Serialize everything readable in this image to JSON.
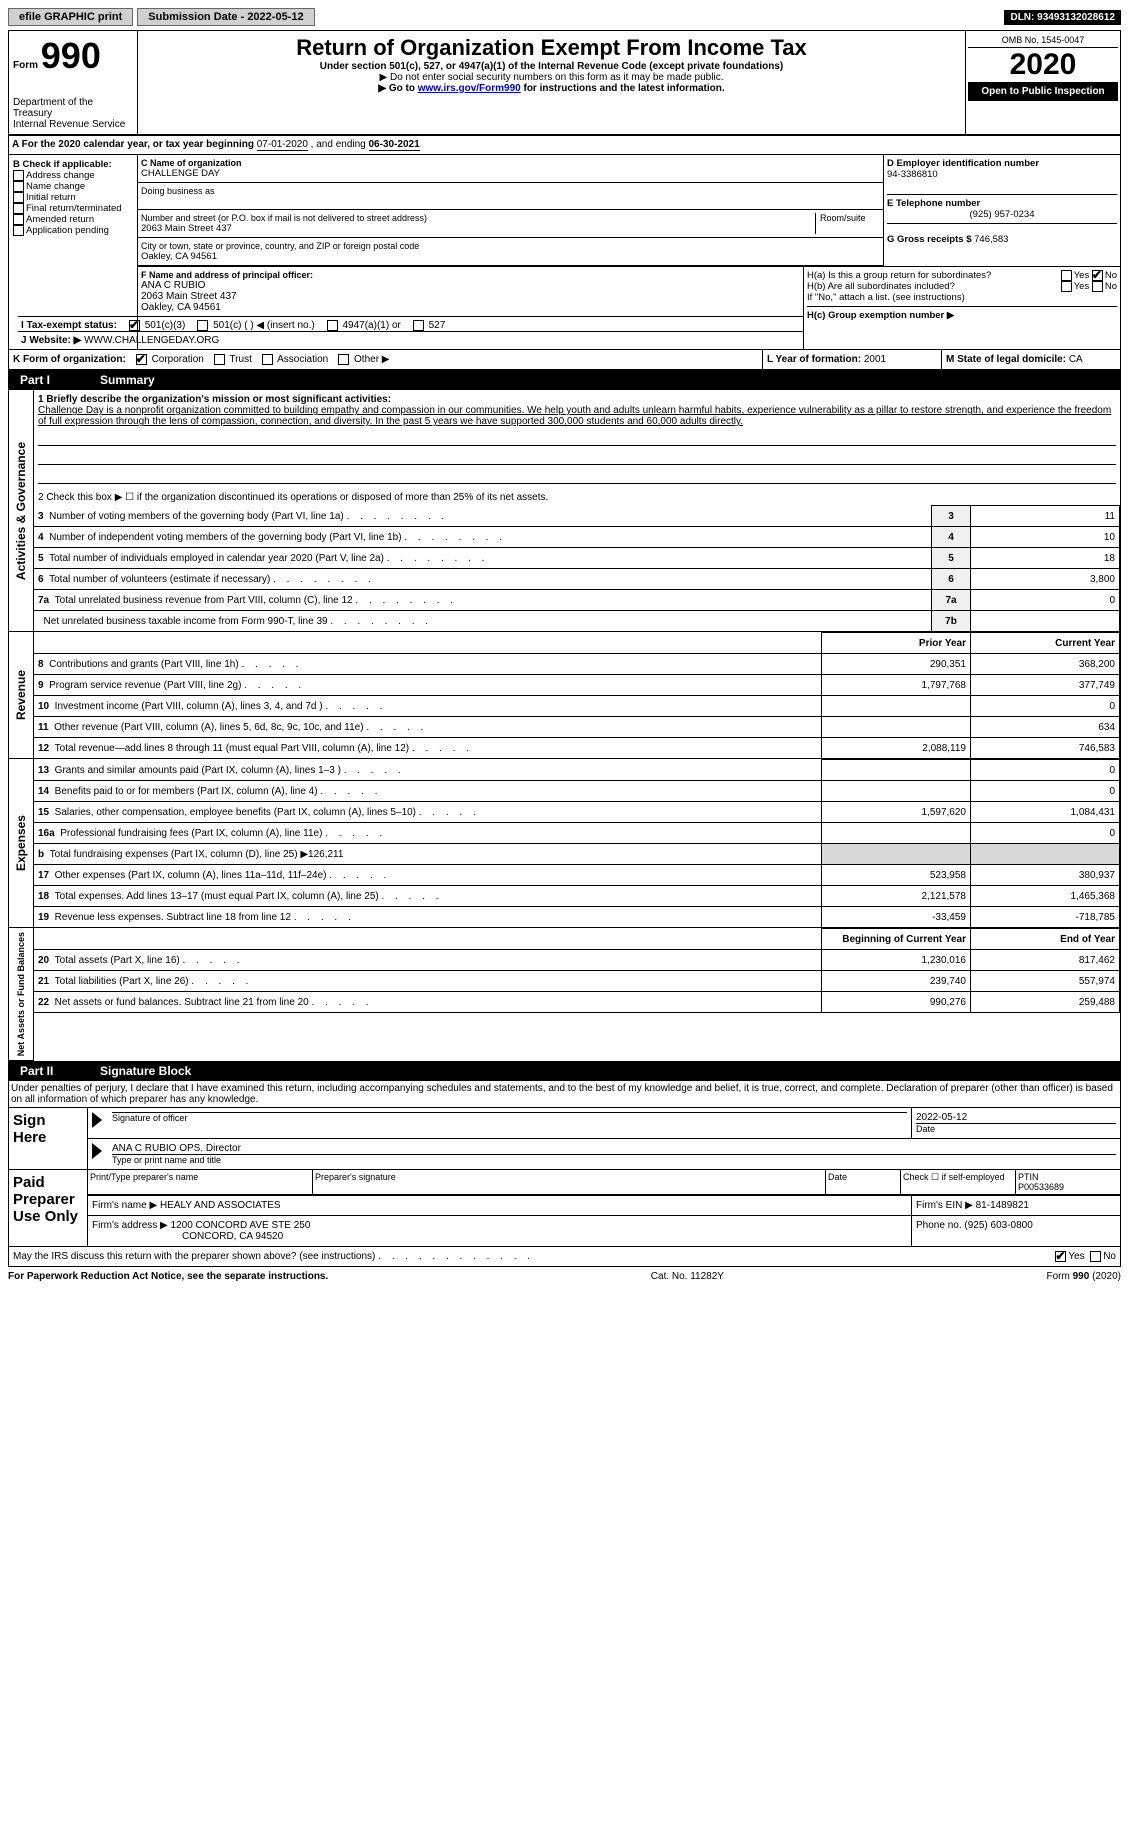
{
  "topbar": {
    "efile": "efile GRAPHIC print",
    "submission_label": "Submission Date - 2022-05-12",
    "dln_label": "DLN: 93493132028612"
  },
  "header": {
    "form_label": "Form",
    "form_number": "990",
    "dept": "Department of the Treasury",
    "irs": "Internal Revenue Service",
    "title": "Return of Organization Exempt From Income Tax",
    "subtitle": "Under section 501(c), 527, or 4947(a)(1) of the Internal Revenue Code (except private foundations)",
    "instr1": "▶ Do not enter social security numbers on this form as it may be made public.",
    "instr2_pre": "▶ Go to ",
    "instr2_link": "www.irs.gov/Form990",
    "instr2_post": " for instructions and the latest information.",
    "omb": "OMB No. 1545-0047",
    "year": "2020",
    "open": "Open to Public Inspection"
  },
  "rowA": {
    "text_pre": "A For the 2020 calendar year, or tax year beginning ",
    "begin": "07-01-2020",
    "mid": " , and ending ",
    "end": "06-30-2021"
  },
  "boxB": {
    "title": "B Check if applicable:",
    "opts": [
      "Address change",
      "Name change",
      "Initial return",
      "Final return/terminated",
      "Amended return",
      "Application pending"
    ]
  },
  "boxC": {
    "label": "C Name of organization",
    "org": "CHALLENGE DAY",
    "dba_label": "Doing business as",
    "addr_label": "Number and street (or P.O. box if mail is not delivered to street address)",
    "room_label": "Room/suite",
    "addr": "2063 Main Street 437",
    "city_label": "City or town, state or province, country, and ZIP or foreign postal code",
    "city": "Oakley, CA  94561"
  },
  "boxD": {
    "label": "D Employer identification number",
    "val": "94-3386810"
  },
  "boxE": {
    "label": "E Telephone number",
    "val": "(925) 957-0234"
  },
  "boxF": {
    "label": "F Name and address of principal officer:",
    "name": "ANA C RUBIO",
    "addr1": "2063 Main Street 437",
    "addr2": "Oakley, CA  94561"
  },
  "boxG": {
    "label": "G Gross receipts $",
    "val": "746,583"
  },
  "boxH": {
    "a": "H(a) Is this a group return for subordinates?",
    "b": "H(b) Are all subordinates included?",
    "note": "If \"No,\" attach a list. (see instructions)",
    "c": "H(c) Group exemption number ▶",
    "yes": "Yes",
    "no": "No"
  },
  "rowI": {
    "label": "I   Tax-exempt status:",
    "opts": [
      "501(c)(3)",
      "501(c) (  ) ◀ (insert no.)",
      "4947(a)(1) or",
      "527"
    ]
  },
  "rowJ": {
    "label": "J   Website: ▶",
    "val": "WWW.CHALLENGEDAY.ORG"
  },
  "rowK": {
    "label": "K Form of organization:",
    "opts": [
      "Corporation",
      "Trust",
      "Association",
      "Other ▶"
    ]
  },
  "rowL": {
    "label": "L Year of formation:",
    "val": "2001"
  },
  "rowM": {
    "label": "M State of legal domicile:",
    "val": "CA"
  },
  "part1": {
    "label": "Part I",
    "title": "Summary",
    "line1_label": "1  Briefly describe the organization's mission or most significant activities:",
    "mission": "Challenge Day is a nonprofit organization committed to building empathy and compassion in our communities. We help youth and adults unlearn harmful habits, experience vulnerability as a pillar to restore strength, and experience the freedom of full expression through the lens of compassion, connection, and diversity. In the past 5 years we have supported 300,000 students and 60,000 adults directly.",
    "line2": "2  Check this box ▶ ☐ if the organization discontinued its operations or disposed of more than 25% of its net assets.",
    "vlabels": {
      "gov": "Activities & Governance",
      "rev": "Revenue",
      "exp": "Expenses",
      "net": "Net Assets or Fund Balances"
    },
    "gov_lines": [
      {
        "n": "3",
        "text": "Number of voting members of the governing body (Part VI, line 1a)",
        "box": "3",
        "val": "11"
      },
      {
        "n": "4",
        "text": "Number of independent voting members of the governing body (Part VI, line 1b)",
        "box": "4",
        "val": "10"
      },
      {
        "n": "5",
        "text": "Total number of individuals employed in calendar year 2020 (Part V, line 2a)",
        "box": "5",
        "val": "18"
      },
      {
        "n": "6",
        "text": "Total number of volunteers (estimate if necessary)",
        "box": "6",
        "val": "3,800"
      },
      {
        "n": "7a",
        "text": "Total unrelated business revenue from Part VIII, column (C), line 12",
        "box": "7a",
        "val": "0"
      },
      {
        "n": "",
        "text": "Net unrelated business taxable income from Form 990-T, line 39",
        "box": "7b",
        "val": ""
      }
    ],
    "col_headers": {
      "prior": "Prior Year",
      "current": "Current Year"
    },
    "rev_lines": [
      {
        "n": "8",
        "text": "Contributions and grants (Part VIII, line 1h)",
        "prior": "290,351",
        "curr": "368,200"
      },
      {
        "n": "9",
        "text": "Program service revenue (Part VIII, line 2g)",
        "prior": "1,797,768",
        "curr": "377,749"
      },
      {
        "n": "10",
        "text": "Investment income (Part VIII, column (A), lines 3, 4, and 7d )",
        "prior": "",
        "curr": "0"
      },
      {
        "n": "11",
        "text": "Other revenue (Part VIII, column (A), lines 5, 6d, 8c, 9c, 10c, and 11e)",
        "prior": "",
        "curr": "634"
      },
      {
        "n": "12",
        "text": "Total revenue—add lines 8 through 11 (must equal Part VIII, column (A), line 12)",
        "prior": "2,088,119",
        "curr": "746,583"
      }
    ],
    "exp_lines": [
      {
        "n": "13",
        "text": "Grants and similar amounts paid (Part IX, column (A), lines 1–3 )",
        "prior": "",
        "curr": "0"
      },
      {
        "n": "14",
        "text": "Benefits paid to or for members (Part IX, column (A), line 4)",
        "prior": "",
        "curr": "0"
      },
      {
        "n": "15",
        "text": "Salaries, other compensation, employee benefits (Part IX, column (A), lines 5–10)",
        "prior": "1,597,620",
        "curr": "1,084,431"
      },
      {
        "n": "16a",
        "text": "Professional fundraising fees (Part IX, column (A), line 11e)",
        "prior": "",
        "curr": "0"
      },
      {
        "n": "b",
        "text": "Total fundraising expenses (Part IX, column (D), line 25) ▶126,211",
        "prior": "grey",
        "curr": "grey"
      },
      {
        "n": "17",
        "text": "Other expenses (Part IX, column (A), lines 11a–11d, 11f–24e)",
        "prior": "523,958",
        "curr": "380,937"
      },
      {
        "n": "18",
        "text": "Total expenses. Add lines 13–17 (must equal Part IX, column (A), line 25)",
        "prior": "2,121,578",
        "curr": "1,465,368"
      },
      {
        "n": "19",
        "text": "Revenue less expenses. Subtract line 18 from line 12",
        "prior": "-33,459",
        "curr": "-718,785"
      }
    ],
    "net_headers": {
      "begin": "Beginning of Current Year",
      "end": "End of Year"
    },
    "net_lines": [
      {
        "n": "20",
        "text": "Total assets (Part X, line 16)",
        "prior": "1,230,016",
        "curr": "817,462"
      },
      {
        "n": "21",
        "text": "Total liabilities (Part X, line 26)",
        "prior": "239,740",
        "curr": "557,974"
      },
      {
        "n": "22",
        "text": "Net assets or fund balances. Subtract line 21 from line 20",
        "prior": "990,276",
        "curr": "259,488"
      }
    ]
  },
  "part2": {
    "label": "Part II",
    "title": "Signature Block",
    "penalty": "Under penalties of perjury, I declare that I have examined this return, including accompanying schedules and statements, and to the best of my knowledge and belief, it is true, correct, and complete. Declaration of preparer (other than officer) is based on all information of which preparer has any knowledge.",
    "sign_here": "Sign Here",
    "sig_officer": "Signature of officer",
    "sig_date": "2022-05-12",
    "date_label": "Date",
    "officer_name": "ANA C RUBIO  OPS. Director",
    "type_label": "Type or print name and title",
    "paid": "Paid Preparer Use Only",
    "prep_name_label": "Print/Type preparer's name",
    "prep_sig_label": "Preparer's signature",
    "self_emp": "Check ☐ if self-employed",
    "ptin_label": "PTIN",
    "ptin": "P00533689",
    "firm_name_label": "Firm's name   ▶",
    "firm_name": "HEALY AND ASSOCIATES",
    "firm_ein_label": "Firm's EIN ▶",
    "firm_ein": "81-1489821",
    "firm_addr_label": "Firm's address ▶",
    "firm_addr1": "1200 CONCORD AVE STE 250",
    "firm_addr2": "CONCORD, CA  94520",
    "phone_label": "Phone no.",
    "phone": "(925) 603-0800",
    "discuss": "May the IRS discuss this return with the preparer shown above? (see instructions)"
  },
  "footer": {
    "pra": "For Paperwork Reduction Act Notice, see the separate instructions.",
    "cat": "Cat. No. 11282Y",
    "form": "Form 990 (2020)"
  }
}
